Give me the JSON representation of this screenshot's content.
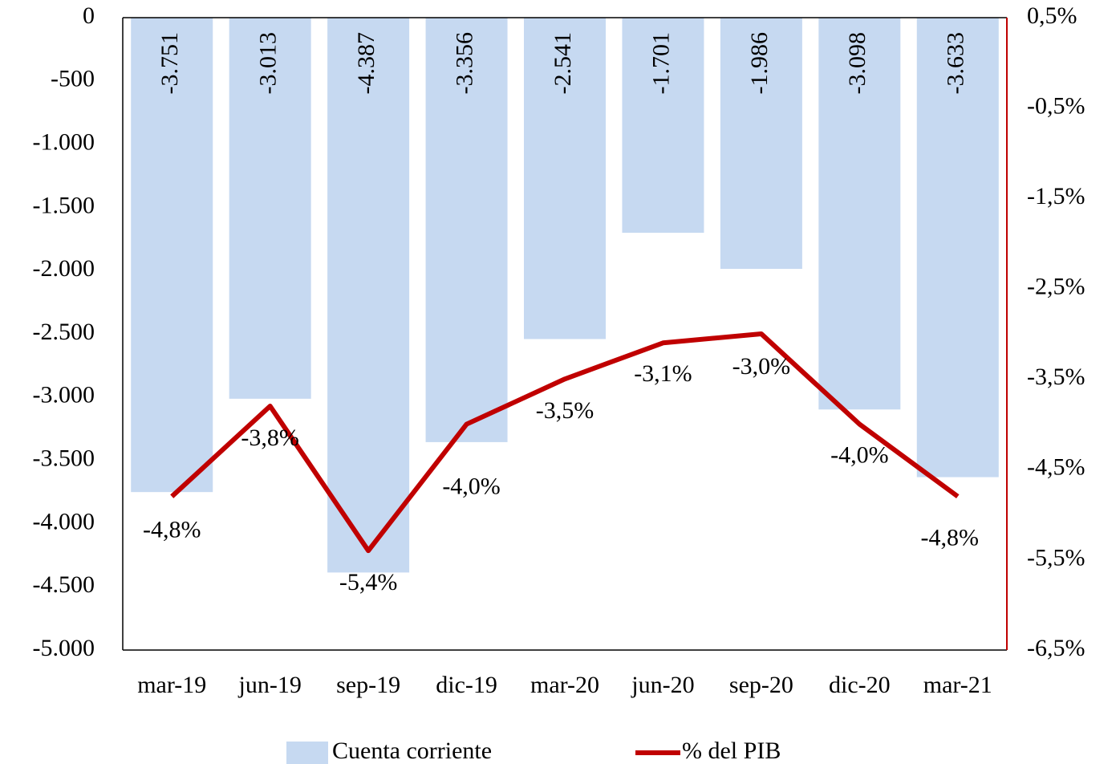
{
  "chart_data": {
    "type": "bar_line",
    "categories": [
      "mar-19",
      "jun-19",
      "sep-19",
      "dic-19",
      "mar-20",
      "jun-20",
      "sep-20",
      "dic-20",
      "mar-21"
    ],
    "series": [
      {
        "name": "Cuenta corriente",
        "type": "bar",
        "color": "#c6d9f1",
        "values": [
          -3751,
          -3013,
          -4387,
          -3356,
          -2541,
          -1701,
          -1986,
          -3098,
          -3633
        ],
        "value_labels": [
          "-3.751",
          "-3.013",
          "-4.387",
          "-3.356",
          "-2.541",
          "-1.701",
          "-1.986",
          "-3.098",
          "-3.633"
        ]
      },
      {
        "name": "% del PIB",
        "type": "line",
        "axis": "y2",
        "color": "#c00000",
        "values": [
          -4.8,
          -3.8,
          -5.4,
          -4.0,
          -3.5,
          -3.1,
          -3.0,
          -4.0,
          -4.8
        ],
        "value_labels": [
          "-4,8%",
          "-3,8%",
          "-5,4%",
          "-4,0%",
          "-3,5%",
          "-3,1%",
          "-3,0%",
          "-4,0%",
          "-4,8%"
        ]
      }
    ],
    "ylim": [
      -5000,
      0
    ],
    "yticks": [
      0,
      -500,
      {
        "value": -1000,
        "label": "-1.000"
      },
      {
        "value": -1500,
        "label": "-1.500"
      },
      {
        "value": -2000,
        "label": "-2.000"
      },
      {
        "value": -2500,
        "label": "-2.500"
      },
      {
        "value": -3000,
        "label": "-3.000"
      },
      {
        "value": -3500,
        "label": "-3.500"
      },
      {
        "value": -4000,
        "label": "-4.000"
      },
      {
        "value": -4500,
        "label": "-4.500"
      },
      {
        "value": -5000,
        "label": "-5.000"
      }
    ],
    "y2lim": [
      -6.5,
      0.5
    ],
    "y2ticks": [
      {
        "value": 0.5,
        "label": "0,5%"
      },
      {
        "value": -0.5,
        "label": "-0,5%"
      },
      {
        "value": -1.5,
        "label": "-1,5%"
      },
      {
        "value": -2.5,
        "label": "-2,5%"
      },
      {
        "value": -3.5,
        "label": "-3,5%"
      },
      {
        "value": -4.5,
        "label": "-4,5%"
      },
      {
        "value": -5.5,
        "label": "-5,5%"
      },
      {
        "value": -6.5,
        "label": "-6,5%"
      }
    ],
    "legend": "bottom"
  }
}
